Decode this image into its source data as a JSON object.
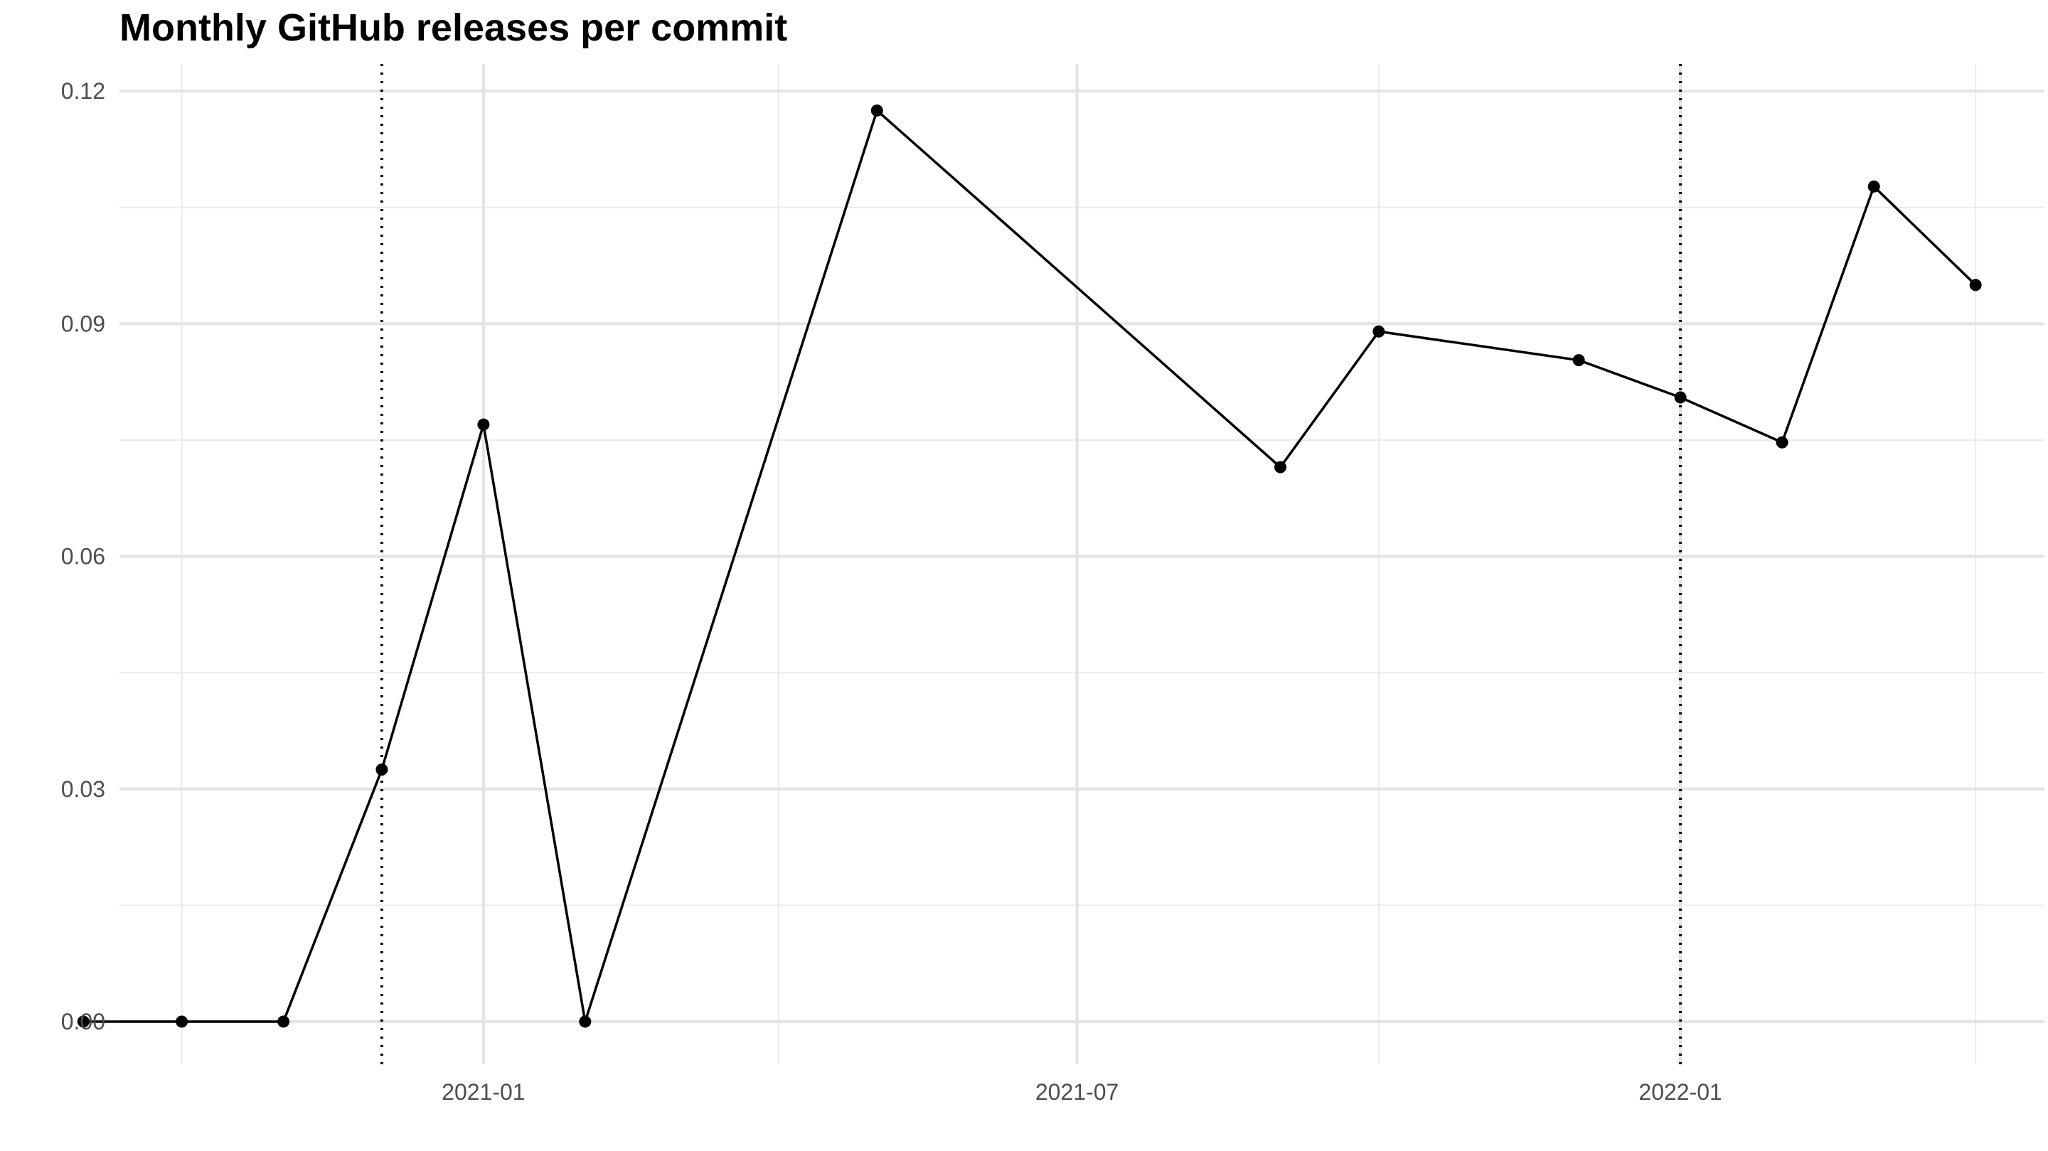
{
  "chart_data": {
    "type": "line",
    "title": "Monthly GitHub releases per commit",
    "xlabel": "",
    "ylabel": "",
    "x_axis": {
      "kind": "date",
      "range": [
        "2020-09-12",
        "2022-04-22"
      ],
      "ticks": [
        {
          "value": "2021-01-01",
          "label": "2021-01"
        },
        {
          "value": "2021-07-01",
          "label": "2021-07"
        },
        {
          "value": "2022-01-01",
          "label": "2022-01"
        }
      ],
      "minor_ticks": [
        "2020-10-01",
        "2021-04-01",
        "2021-10-01",
        "2022-04-01"
      ]
    },
    "y_axis": {
      "range": [
        -0.0055,
        0.1235
      ],
      "ticks": [
        {
          "value": 0.0,
          "label": "0.00"
        },
        {
          "value": 0.03,
          "label": "0.03"
        },
        {
          "value": 0.06,
          "label": "0.06"
        },
        {
          "value": 0.09,
          "label": "0.09"
        },
        {
          "value": 0.12,
          "label": "0.12"
        }
      ],
      "minor_ticks": [
        0.015,
        0.045,
        0.075,
        0.105
      ]
    },
    "grid": true,
    "series": [
      {
        "color": "#000000",
        "marker": "circle",
        "points": [
          {
            "x": "2020-09-01",
            "y": 0.0
          },
          {
            "x": "2020-10-01",
            "y": 0.0
          },
          {
            "x": "2020-11-01",
            "y": 0.0
          },
          {
            "x": "2020-12-01",
            "y": 0.0325
          },
          {
            "x": "2021-01-01",
            "y": 0.077
          },
          {
            "x": "2021-02-01",
            "y": 0.0
          },
          {
            "x": "2021-05-01",
            "y": 0.1175
          },
          {
            "x": "2021-09-01",
            "y": 0.0715
          },
          {
            "x": "2021-10-01",
            "y": 0.089
          },
          {
            "x": "2021-12-01",
            "y": 0.0853
          },
          {
            "x": "2022-01-01",
            "y": 0.0805
          },
          {
            "x": "2022-02-01",
            "y": 0.0747
          },
          {
            "x": "2022-03-01",
            "y": 0.1077
          },
          {
            "x": "2022-04-01",
            "y": 0.095
          }
        ]
      }
    ],
    "reference_lines": [
      {
        "orientation": "vertical",
        "x": "2020-12-01",
        "style": "dotted",
        "color": "#000000"
      },
      {
        "orientation": "vertical",
        "x": "2022-01-01",
        "style": "dotted",
        "color": "#000000"
      }
    ]
  }
}
